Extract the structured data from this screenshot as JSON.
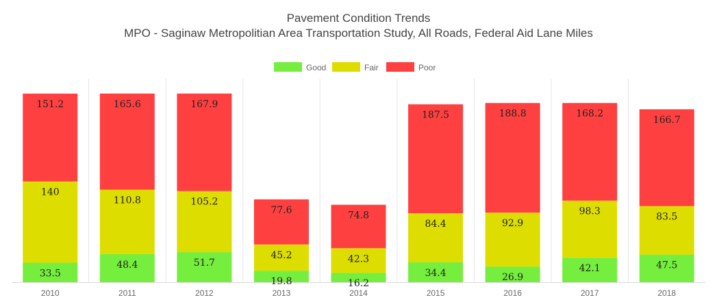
{
  "chart_data": {
    "type": "bar",
    "stacked": true,
    "title": "Pavement Condition Trends",
    "subtitle": "MPO - Saginaw Metropolitian Area Transportation Study, All Roads, Federal Aid Lane Miles",
    "categories": [
      "2010",
      "2011",
      "2012",
      "2013",
      "2014",
      "2015",
      "2016",
      "2017",
      "2018"
    ],
    "series": [
      {
        "name": "Good",
        "color": "#76ee3e",
        "values": [
          33.5,
          48.4,
          51.7,
          19.8,
          16.2,
          34.4,
          26.9,
          42.1,
          47.5
        ]
      },
      {
        "name": "Fair",
        "color": "#dddd00",
        "values": [
          140,
          110.8,
          105.2,
          45.2,
          42.3,
          84.4,
          92.9,
          98.3,
          83.5
        ]
      },
      {
        "name": "Poor",
        "color": "#ff4040",
        "values": [
          151.2,
          165.6,
          167.9,
          77.6,
          74.8,
          187.5,
          188.8,
          168.2,
          166.7
        ]
      }
    ],
    "xlabel": "",
    "ylabel": "",
    "ylim": [
      0,
      325
    ],
    "grid": "vertical",
    "legend": "top-center"
  }
}
